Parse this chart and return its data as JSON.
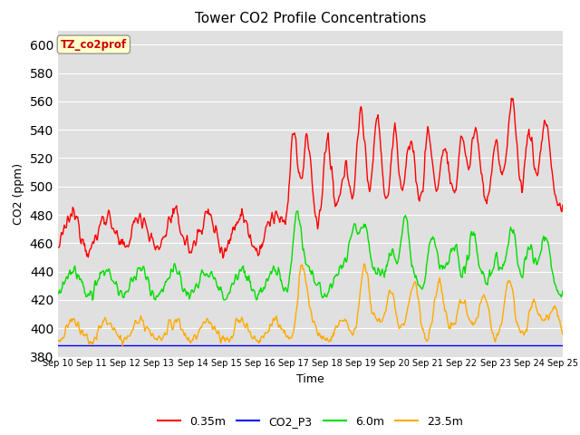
{
  "title": "Tower CO2 Profile Concentrations",
  "xlabel": "Time",
  "ylabel": "CO2 (ppm)",
  "ylim": [
    380,
    610
  ],
  "yticks": [
    380,
    400,
    420,
    440,
    460,
    480,
    500,
    520,
    540,
    560,
    580,
    600
  ],
  "x_labels": [
    "Sep 10",
    "Sep 11",
    "Sep 12",
    "Sep 13",
    "Sep 14",
    "Sep 15",
    "Sep 16",
    "Sep 17",
    "Sep 18",
    "Sep 19",
    "Sep 20",
    "Sep 21",
    "Sep 22",
    "Sep 23",
    "Sep 24",
    "Sep 25"
  ],
  "series_colors": {
    "0.35m": "#ff0000",
    "CO2_P3": "#0000ff",
    "6.0m": "#00dd00",
    "23.5m": "#ffaa00"
  },
  "annotation_text": "TZ_co2prof",
  "annotation_color": "#cc0000",
  "annotation_bg": "#ffffcc",
  "bg_color": "#e0e0e0",
  "grid_color": "#ffffff",
  "n_points": 720,
  "lw": 1.0
}
